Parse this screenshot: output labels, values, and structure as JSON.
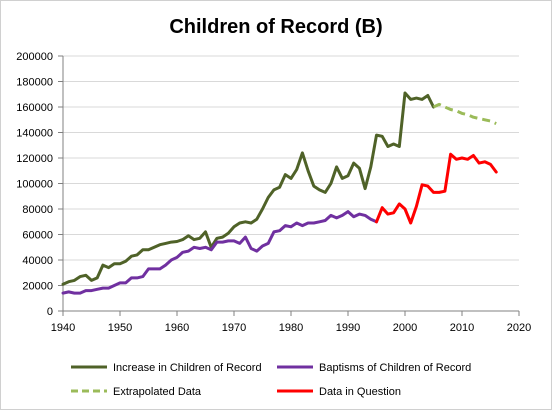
{
  "chart_data": {
    "type": "line",
    "title": "Children of Record (B)",
    "xlabel": "",
    "ylabel": "",
    "xlim": [
      1940,
      2020
    ],
    "ylim": [
      0,
      200000
    ],
    "x_ticks": [
      1940,
      1950,
      1960,
      1970,
      1980,
      1990,
      2000,
      2010,
      2020
    ],
    "y_ticks": [
      0,
      20000,
      40000,
      60000,
      80000,
      100000,
      120000,
      140000,
      160000,
      180000,
      200000
    ],
    "grid": "horizontal",
    "legend_position": "bottom",
    "series": [
      {
        "name": "Increase in Children of Record",
        "color": "#4f6228",
        "style": "solid",
        "x": [
          1940,
          1941,
          1942,
          1943,
          1944,
          1945,
          1946,
          1947,
          1948,
          1949,
          1950,
          1951,
          1952,
          1953,
          1954,
          1955,
          1956,
          1957,
          1958,
          1959,
          1960,
          1961,
          1962,
          1963,
          1964,
          1965,
          1966,
          1967,
          1968,
          1969,
          1970,
          1971,
          1972,
          1973,
          1974,
          1975,
          1976,
          1977,
          1978,
          1979,
          1980,
          1981,
          1982,
          1983,
          1984,
          1985,
          1986,
          1987,
          1988,
          1989,
          1990,
          1991,
          1992,
          1993,
          1994,
          1995,
          1996,
          1997,
          1998,
          1999,
          2000,
          2001,
          2002,
          2003,
          2004,
          2005
        ],
        "values": [
          21000,
          23000,
          24000,
          27000,
          28000,
          24000,
          26000,
          36000,
          34000,
          37000,
          37000,
          39000,
          43000,
          44000,
          48000,
          48000,
          50000,
          52000,
          53000,
          54000,
          54500,
          56000,
          59000,
          56000,
          57000,
          62000,
          50000,
          57000,
          58000,
          61000,
          66000,
          69000,
          70000,
          69000,
          72000,
          80000,
          89000,
          95000,
          97000,
          107000,
          104000,
          111000,
          124000,
          110000,
          98000,
          95000,
          93000,
          100000,
          113000,
          104000,
          106000,
          116000,
          112000,
          96000,
          113000,
          138000,
          137000,
          129000,
          131000,
          129000,
          171000,
          166000,
          167000,
          166000,
          169000,
          160000
        ]
      },
      {
        "name": "Baptisms of Children of Record",
        "color": "#7030a0",
        "style": "solid",
        "x": [
          1940,
          1941,
          1942,
          1943,
          1944,
          1945,
          1946,
          1947,
          1948,
          1949,
          1950,
          1951,
          1952,
          1953,
          1954,
          1955,
          1956,
          1957,
          1958,
          1959,
          1960,
          1961,
          1962,
          1963,
          1964,
          1965,
          1966,
          1967,
          1968,
          1969,
          1970,
          1971,
          1972,
          1973,
          1974,
          1975,
          1976,
          1977,
          1978,
          1979,
          1980,
          1981,
          1982,
          1983,
          1984,
          1985,
          1986,
          1987,
          1988,
          1989,
          1990,
          1991,
          1992,
          1993,
          1994,
          1995
        ],
        "values": [
          14000,
          15000,
          14000,
          14000,
          16000,
          16000,
          17000,
          18000,
          18000,
          20000,
          22000,
          22000,
          26000,
          26000,
          27000,
          33000,
          33000,
          33000,
          36000,
          40000,
          42000,
          46000,
          47000,
          50000,
          49000,
          50000,
          48000,
          54000,
          54000,
          55000,
          55000,
          53000,
          58000,
          49000,
          47000,
          51000,
          53000,
          62000,
          63000,
          67000,
          66000,
          69000,
          67000,
          69000,
          69000,
          70000,
          71000,
          75000,
          73000,
          75000,
          78000,
          74000,
          76000,
          75000,
          72000,
          70000
        ]
      },
      {
        "name": "Extrapolated Data",
        "color": "#9bbb59",
        "style": "dashed",
        "x": [
          2005,
          2006,
          2007,
          2008,
          2009,
          2010,
          2011,
          2012,
          2013,
          2014,
          2015,
          2016
        ],
        "values": [
          160000,
          162000,
          160000,
          158000,
          157000,
          155000,
          154000,
          152000,
          151000,
          150000,
          149000,
          147000
        ]
      },
      {
        "name": "Data in Question",
        "color": "#ff0000",
        "style": "solid",
        "x": [
          1995,
          1996,
          1997,
          1998,
          1999,
          2000,
          2001,
          2002,
          2003,
          2004,
          2005,
          2006,
          2007,
          2008,
          2009,
          2010,
          2011,
          2012,
          2013,
          2014,
          2015,
          2016
        ],
        "values": [
          70000,
          81000,
          76000,
          77000,
          84000,
          80000,
          69000,
          82000,
          99000,
          98000,
          93000,
          93000,
          94000,
          123000,
          119000,
          120000,
          119000,
          122000,
          116000,
          117000,
          115000,
          109000
        ]
      }
    ]
  }
}
